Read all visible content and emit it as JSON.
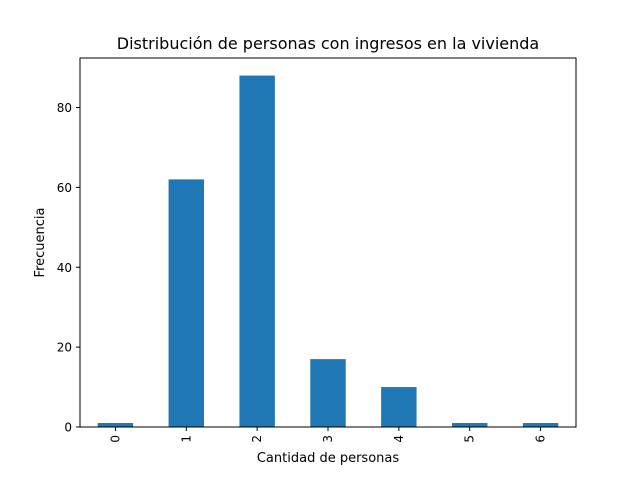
{
  "chart_data": {
    "type": "bar",
    "title": "Distribución de personas con ingresos en la vivienda",
    "xlabel": "Cantidad de personas",
    "ylabel": "Frecuencia",
    "categories": [
      "0",
      "1",
      "2",
      "3",
      "4",
      "5",
      "6"
    ],
    "values": [
      1,
      62,
      88,
      17,
      10,
      1,
      1
    ],
    "ylim": [
      0,
      92.4
    ],
    "yticks": [
      0,
      20,
      40,
      60,
      80
    ],
    "grid": false,
    "legend": "none",
    "bar_color": "#1f77b4"
  }
}
